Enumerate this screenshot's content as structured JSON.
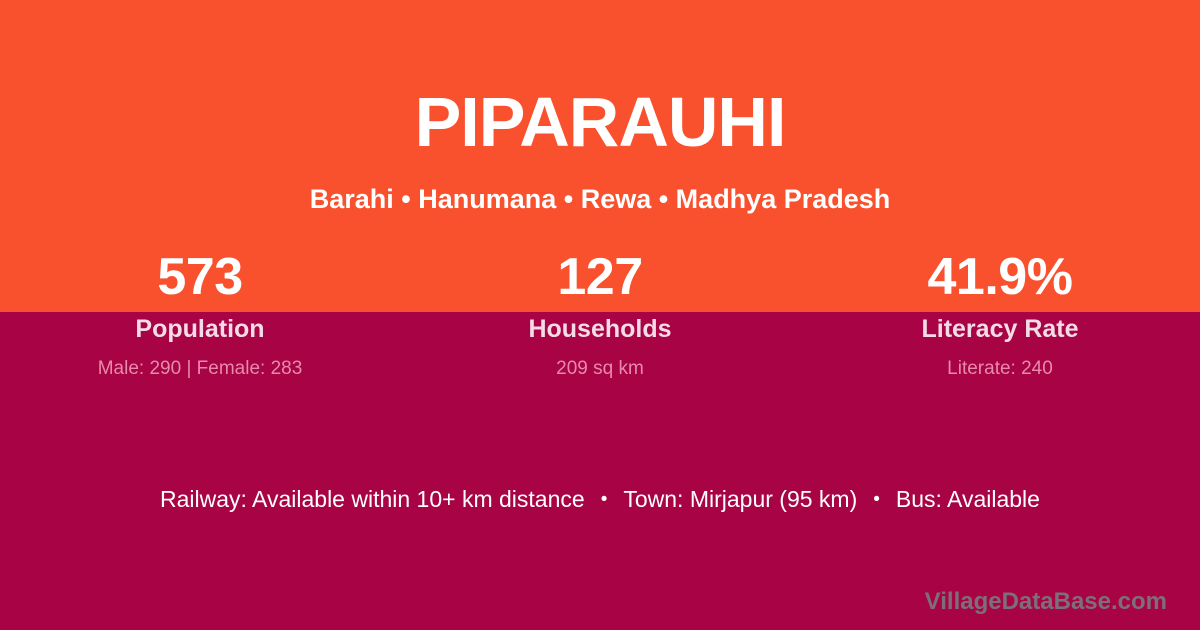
{
  "colors": {
    "top_bg": "#F9502D",
    "bottom_bg": "#A70345",
    "text_white": "#FFFFFF",
    "label_pink": "#F4DCE7",
    "detail_pink": "#E989AE",
    "watermark_gray": "#7D6F7A"
  },
  "header": {
    "title": "PIPARAUHI",
    "location_line": "Barahi • Hanumana • Rewa • Madhya Pradesh"
  },
  "stats": [
    {
      "value": "573",
      "label": "Population",
      "detail": "Male: 290 | Female: 283"
    },
    {
      "value": "127",
      "label": "Households",
      "detail": "209 sq km"
    },
    {
      "value": "41.9%",
      "label": "Literacy Rate",
      "detail": "Literate: 240"
    }
  ],
  "info": {
    "separator": "•",
    "items": [
      "Railway: Available within 10+ km distance",
      "Town: Mirjapur (95 km)",
      "Bus: Available"
    ]
  },
  "footer": {
    "watermark": "VillageDataBase.com"
  }
}
